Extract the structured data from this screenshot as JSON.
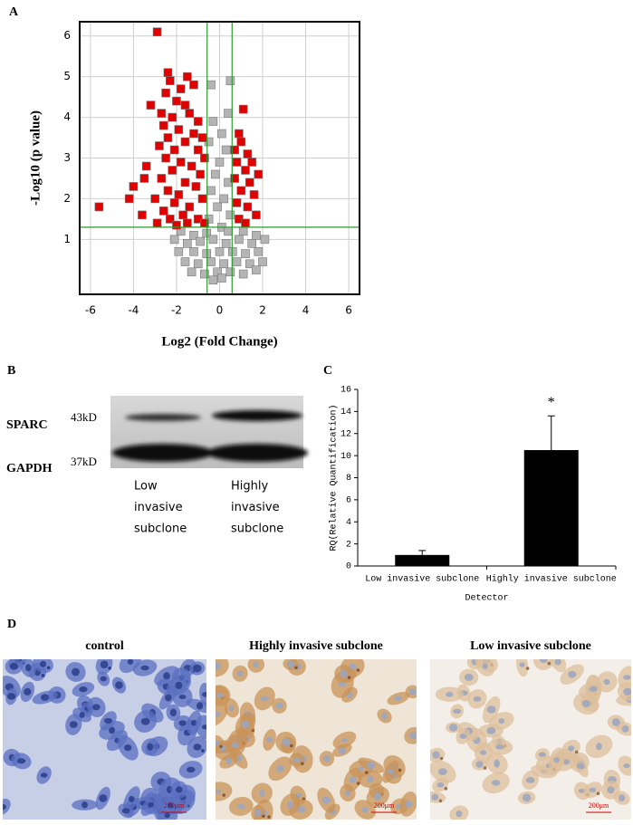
{
  "chart_data": [
    {
      "type": "scatter",
      "panel": "A",
      "xlabel": "Log2 (Fold Change)",
      "ylabel": "-Log10 (p value)",
      "xlim": [
        -6.5,
        6.5
      ],
      "ylim": [
        -0.35,
        6.35
      ],
      "xticks": [
        -6,
        -4,
        -2,
        0,
        2,
        4,
        6
      ],
      "yticks": [
        1,
        2,
        3,
        4,
        5,
        6
      ],
      "grid": true,
      "vlines": [
        -0.58,
        0.58
      ],
      "hline": 1.3,
      "threshold_color": "#2e9a2e",
      "series": [
        {
          "color": "#b4b4b4",
          "x": [
            0.5,
            -0.4,
            0.4,
            -0.3,
            0.1,
            -0.5,
            0.3,
            0.0,
            -0.2,
            0.4,
            -0.4,
            0.2,
            -0.1,
            0.5,
            -0.5,
            0.1,
            -1.8,
            -1.2,
            -0.6,
            0.4,
            1.1,
            1.7,
            -2.1,
            -1.5,
            -0.9,
            -0.3,
            0.3,
            0.9,
            1.5,
            2.1,
            -1.9,
            -1.2,
            -0.6,
            0.0,
            0.6,
            1.2,
            1.8,
            -1.6,
            -1.0,
            -0.4,
            0.2,
            0.8,
            1.4,
            2.0,
            -1.3,
            -0.7,
            -0.1,
            0.5,
            1.1,
            1.7,
            -0.3,
            0.1
          ],
          "values": [
            4.9,
            4.8,
            4.1,
            3.9,
            3.6,
            3.4,
            3.2,
            2.9,
            2.6,
            2.4,
            2.2,
            2.0,
            1.8,
            1.6,
            1.5,
            1.3,
            1.2,
            1.1,
            1.15,
            1.2,
            1.2,
            1.1,
            1.0,
            0.9,
            0.95,
            1.0,
            0.9,
            1.0,
            0.9,
            1.0,
            0.7,
            0.7,
            0.65,
            0.7,
            0.7,
            0.65,
            0.7,
            0.45,
            0.4,
            0.45,
            0.4,
            0.45,
            0.4,
            0.45,
            0.2,
            0.15,
            0.2,
            0.2,
            0.15,
            0.25,
            0.0,
            0.05
          ]
        },
        {
          "color": "#e00000",
          "x": [
            -2.9,
            -2.4,
            -2.3,
            -1.5,
            -1.2,
            -2.5,
            -1.8,
            -3.2,
            -2.0,
            -1.6,
            -2.7,
            -2.2,
            -1.4,
            -1.0,
            -2.6,
            -1.9,
            -1.2,
            -0.8,
            -2.4,
            -1.6,
            -2.8,
            -2.1,
            -1.0,
            -0.7,
            -2.5,
            -1.8,
            -1.3,
            -3.4,
            -2.2,
            -0.9,
            -3.5,
            -2.7,
            -1.6,
            -1.1,
            -4.0,
            -2.4,
            -1.9,
            -0.8,
            -4.2,
            -3.0,
            -2.1,
            -1.4,
            -5.6,
            -2.6,
            -1.7,
            -3.6,
            -1.0,
            -2.3,
            -2.9,
            -1.5,
            -0.7,
            -2.0,
            1.1,
            0.9,
            1.0,
            0.7,
            1.3,
            0.8,
            1.5,
            1.2,
            1.8,
            0.7,
            1.4,
            1.0,
            1.6,
            0.8,
            1.3,
            1.7,
            0.9,
            1.2
          ],
          "values": [
            6.1,
            5.1,
            4.9,
            5.0,
            4.8,
            4.6,
            4.7,
            4.3,
            4.4,
            4.3,
            4.1,
            4.0,
            4.1,
            3.9,
            3.8,
            3.7,
            3.6,
            3.5,
            3.5,
            3.4,
            3.3,
            3.2,
            3.2,
            3.0,
            3.0,
            2.9,
            2.8,
            2.8,
            2.7,
            2.6,
            2.5,
            2.5,
            2.4,
            2.3,
            2.3,
            2.2,
            2.1,
            2.0,
            2.0,
            2.0,
            1.9,
            1.8,
            1.8,
            1.7,
            1.6,
            1.6,
            1.5,
            1.5,
            1.4,
            1.4,
            1.4,
            1.35,
            4.2,
            3.6,
            3.4,
            3.2,
            3.1,
            2.9,
            2.9,
            2.7,
            2.6,
            2.5,
            2.4,
            2.2,
            2.1,
            1.9,
            1.8,
            1.6,
            1.5,
            1.4
          ]
        }
      ]
    },
    {
      "type": "bar",
      "panel": "C",
      "ylabel": "RQ(Relative Quantification)",
      "xlabel": "Detector",
      "categories": [
        "Low invasive subclone",
        "Highly invasive subclone"
      ],
      "values": [
        1.0,
        10.5
      ],
      "errors": [
        0.4,
        3.1
      ],
      "color": "#000000",
      "annotation": "*",
      "ylim": [
        0,
        16
      ],
      "yticks": [
        0,
        2,
        4,
        6,
        8,
        10,
        12,
        14,
        16
      ]
    }
  ],
  "figure": {
    "panel_labels": [
      "A",
      "B",
      "C",
      "D"
    ],
    "blot": {
      "proteins": [
        "SPARC",
        "GAPDH"
      ],
      "sizes": [
        "43kD",
        "37kD"
      ],
      "lanes": [
        [
          "Low",
          "invasive",
          "subclone"
        ],
        [
          "Highly",
          "invasive",
          "subclone"
        ]
      ]
    },
    "micrographs": [
      {
        "title": "control",
        "scale": "200μm"
      },
      {
        "title": "Highly invasive subclone",
        "scale": "200μm"
      },
      {
        "title": "Low invasive subclone",
        "scale": "200μm"
      }
    ]
  }
}
